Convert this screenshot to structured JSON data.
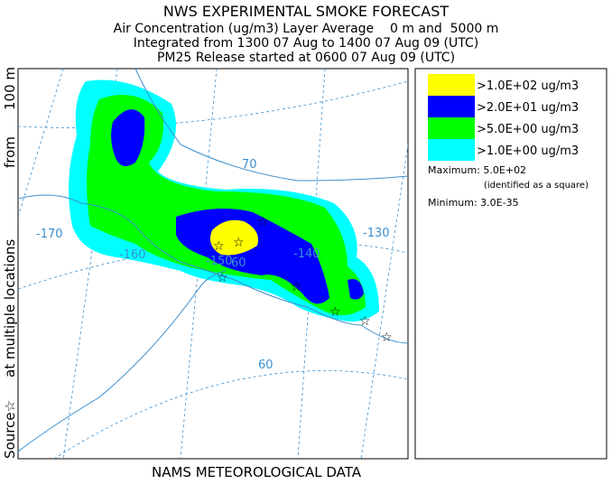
{
  "header": {
    "title": "NWS EXPERIMENTAL SMOKE FORECAST",
    "lines": [
      "Air Concentration (ug/m3) Layer Average    0 m and  5000 m",
      "Integrated from 1300 07 Aug to 1400 07 Aug 09 (UTC)",
      "PM25 Release started at 0600 07 Aug 09 (UTC)"
    ]
  },
  "side_label": [
    "Source☆",
    "at multiple locations",
    "from",
    "100 m"
  ],
  "footer": "NAMS METEOROLOGICAL DATA",
  "map": {
    "labels": [
      "70",
      "-170",
      "-160",
      "-150",
      "-140",
      "-130",
      "60",
      "60"
    ]
  },
  "legend": {
    "items": [
      {
        "label": ">1.0E+02 ug/m3",
        "color": "#ffff00"
      },
      {
        "label": ">2.0E+01 ug/m3",
        "color": "#0000ff"
      },
      {
        "label": ">5.0E+00 ug/m3",
        "color": "#00ff00"
      },
      {
        "label": ">1.0E+00 ug/m3",
        "color": "#00ffff"
      }
    ],
    "maximum": "Maximum: 5.0E+02",
    "maximum_note": "(identified as a square)",
    "minimum": "Minimum: 3.0E-35"
  }
}
